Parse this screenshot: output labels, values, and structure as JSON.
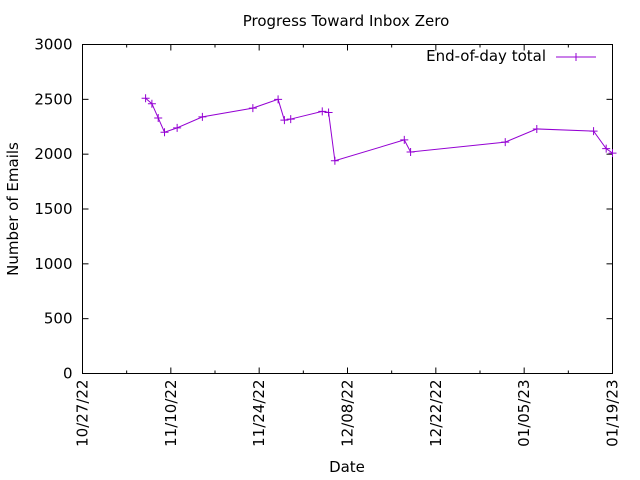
{
  "chart_data": {
    "type": "line",
    "title": "Progress Toward Inbox Zero",
    "xlabel": "Date",
    "ylabel": "Number of Emails",
    "x_axis_type": "date",
    "xlim": [
      "2022-10-27",
      "2023-01-19"
    ],
    "ylim": [
      0,
      3000
    ],
    "x_ticks": [
      {
        "date": "2022-10-27",
        "label": "10/27/22"
      },
      {
        "date": "2022-11-10",
        "label": "11/10/22"
      },
      {
        "date": "2022-11-24",
        "label": "11/24/22"
      },
      {
        "date": "2022-12-08",
        "label": "12/08/22"
      },
      {
        "date": "2022-12-22",
        "label": "12/22/22"
      },
      {
        "date": "2023-01-05",
        "label": "01/05/23"
      },
      {
        "date": "2023-01-19",
        "label": "01/19/23"
      }
    ],
    "x_minor_ticks": [
      "2022-11-03",
      "2022-11-17",
      "2022-12-01",
      "2022-12-15",
      "2022-12-29",
      "2023-01-12"
    ],
    "y_ticks": [
      0,
      500,
      1000,
      1500,
      2000,
      2500,
      3000
    ],
    "grid": false,
    "legend_position": "top-right",
    "series": [
      {
        "name": "End-of-day total",
        "color": "#9400d3",
        "marker": "plus",
        "points": [
          {
            "x": "2022-11-06",
            "y": 2510
          },
          {
            "x": "2022-11-07",
            "y": 2460
          },
          {
            "x": "2022-11-08",
            "y": 2330
          },
          {
            "x": "2022-11-09",
            "y": 2200
          },
          {
            "x": "2022-11-11",
            "y": 2240
          },
          {
            "x": "2022-11-15",
            "y": 2340
          },
          {
            "x": "2022-11-23",
            "y": 2420
          },
          {
            "x": "2022-11-27",
            "y": 2500
          },
          {
            "x": "2022-11-28",
            "y": 2310
          },
          {
            "x": "2022-11-29",
            "y": 2320
          },
          {
            "x": "2022-12-04",
            "y": 2390
          },
          {
            "x": "2022-12-05",
            "y": 2380
          },
          {
            "x": "2022-12-06",
            "y": 1940
          },
          {
            "x": "2022-12-17",
            "y": 2130
          },
          {
            "x": "2022-12-18",
            "y": 2020
          },
          {
            "x": "2023-01-02",
            "y": 2110
          },
          {
            "x": "2023-01-07",
            "y": 2230
          },
          {
            "x": "2023-01-16",
            "y": 2210
          },
          {
            "x": "2023-01-18",
            "y": 2050
          },
          {
            "x": "2023-01-19",
            "y": 2010
          }
        ]
      }
    ]
  }
}
